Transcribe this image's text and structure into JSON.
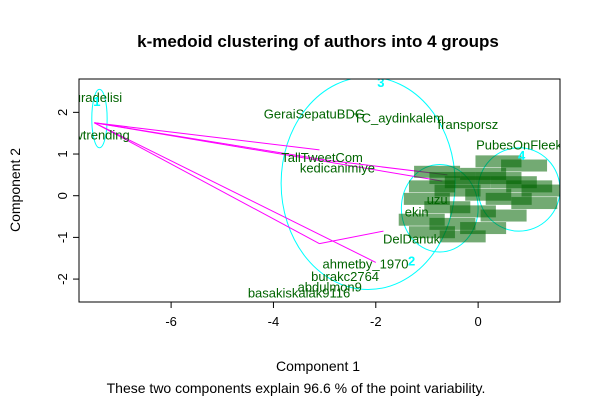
{
  "chart_data": {
    "type": "scatter",
    "title": "k-medoid clustering of authors into 4 groups",
    "xlabel": "Component 1",
    "ylabel": "Component 2",
    "subtitle": "These two components explain 96.6 % of the point variability.",
    "xlim": [
      -7.8,
      1.6
    ],
    "ylim": [
      -2.55,
      2.8
    ],
    "xticks": [
      -6,
      -4,
      -2,
      0
    ],
    "yticks": [
      -2,
      -1,
      0,
      1,
      2
    ],
    "grid": false,
    "colors": {
      "label": "#006400",
      "ellipse": "#00ffff",
      "segment": "#ff00ff",
      "axis": "#000000"
    },
    "points": [
      {
        "label": "nuradelisi",
        "x": -7.5,
        "y": 2.35
      },
      {
        "label": "nowtrending",
        "x": -7.5,
        "y": 1.45
      },
      {
        "label": "GeraiSepatuBDG",
        "x": -3.2,
        "y": 1.95
      },
      {
        "label": "TC_aydinkalem",
        "x": -1.55,
        "y": 1.85
      },
      {
        "label": "fransporsz",
        "x": -0.2,
        "y": 1.7
      },
      {
        "label": "TallTweetCom",
        "x": -3.05,
        "y": 0.9
      },
      {
        "label": "kedicanimiye",
        "x": -2.75,
        "y": 0.65
      },
      {
        "label": "PubesOnFleek",
        "x": 0.8,
        "y": 1.2
      },
      {
        "label": "ekin",
        "x": -1.2,
        "y": -0.4
      },
      {
        "label": "uzu",
        "x": -0.8,
        "y": -0.1
      },
      {
        "label": "DelDanuk",
        "x": -1.3,
        "y": -1.05
      },
      {
        "label": "ahmetby_1970",
        "x": -2.2,
        "y": -1.65
      },
      {
        "label": "burakc2764",
        "x": -2.6,
        "y": -1.95
      },
      {
        "label": "abdulmon9",
        "x": -2.9,
        "y": -2.2
      },
      {
        "label": "basakiskalak9116",
        "x": -3.5,
        "y": -2.35
      }
    ],
    "clusters": [
      {
        "id": "1",
        "cx": -7.4,
        "cy": 1.85,
        "rx": 0.15,
        "ry": 0.7,
        "angle": 0
      },
      {
        "id": "2",
        "cx": -0.75,
        "cy": -0.3,
        "rx": 0.75,
        "ry": 1.05,
        "angle": 0
      },
      {
        "id": "3",
        "cx": -2.15,
        "cy": 0.3,
        "rx": 1.7,
        "ry": 2.55,
        "angle": 0
      },
      {
        "id": "4",
        "cx": 0.8,
        "cy": 0.15,
        "rx": 0.8,
        "ry": 1.0,
        "angle": 0
      }
    ],
    "segments": [
      {
        "from": [
          -7.5,
          1.75
        ],
        "to": [
          -3.1,
          1.1
        ]
      },
      {
        "from": [
          -7.5,
          1.75
        ],
        "to": [
          -0.7,
          0.35
        ]
      },
      {
        "from": [
          -7.5,
          1.75
        ],
        "to": [
          -2.0,
          -1.6
        ]
      },
      {
        "from": [
          -7.5,
          1.75
        ],
        "to": [
          -2.95,
          0.85
        ]
      },
      {
        "from": [
          -7.5,
          1.75
        ],
        "to": [
          -3.1,
          -1.15
        ]
      },
      {
        "from": [
          -3.1,
          -1.15
        ],
        "to": [
          -1.85,
          -0.85
        ]
      },
      {
        "from": [
          -2.95,
          0.85
        ],
        "to": [
          -0.6,
          0.5
        ]
      }
    ],
    "cluster_labels": [
      {
        "text": "1",
        "x": -7.45,
        "y": 2.25
      },
      {
        "text": "3",
        "x": -1.9,
        "y": 2.7
      },
      {
        "text": "4",
        "x": 0.85,
        "y": 0.95
      },
      {
        "text": "2",
        "x": -1.3,
        "y": -1.58
      }
    ]
  }
}
